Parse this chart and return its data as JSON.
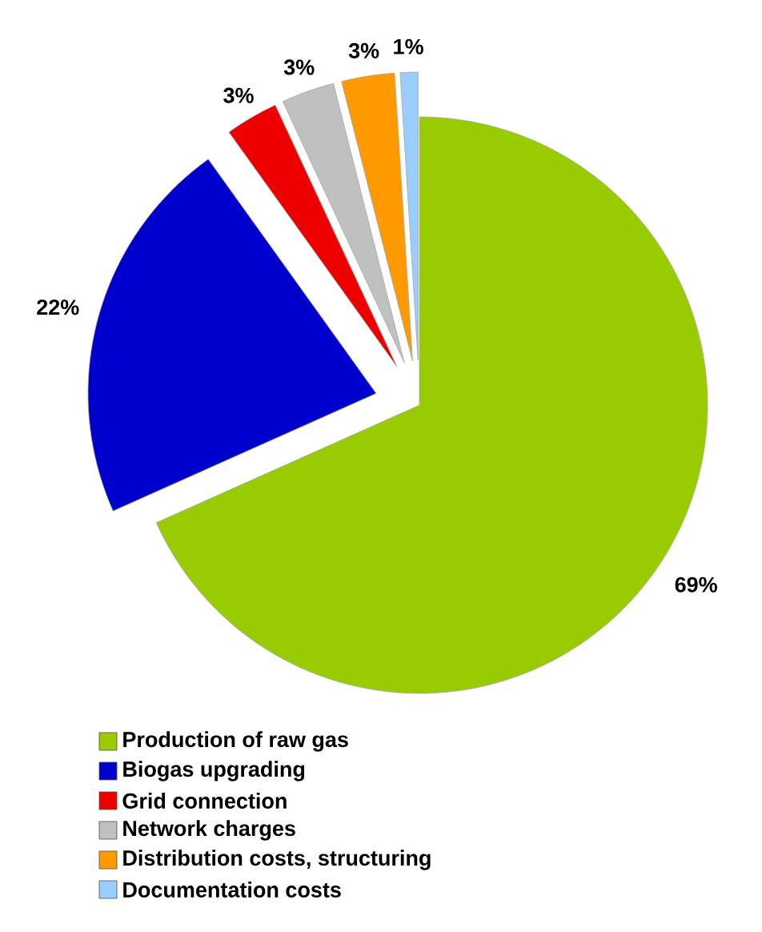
{
  "chart_data": {
    "type": "pie",
    "categories": [
      "Production of raw gas",
      "Biogas upgrading",
      "Grid connection",
      "Network charges",
      "Distribution costs, structuring",
      "Documentation costs"
    ],
    "values": [
      69,
      22,
      3,
      3,
      3,
      1
    ],
    "colors": [
      "#99cc00",
      "#0000cc",
      "#ee0000",
      "#c0c0c0",
      "#ff9900",
      "#99ccff"
    ],
    "value_labels": [
      "69%",
      "22%",
      "3%",
      "3%",
      "3%",
      "1%"
    ],
    "legend": "bottom"
  }
}
